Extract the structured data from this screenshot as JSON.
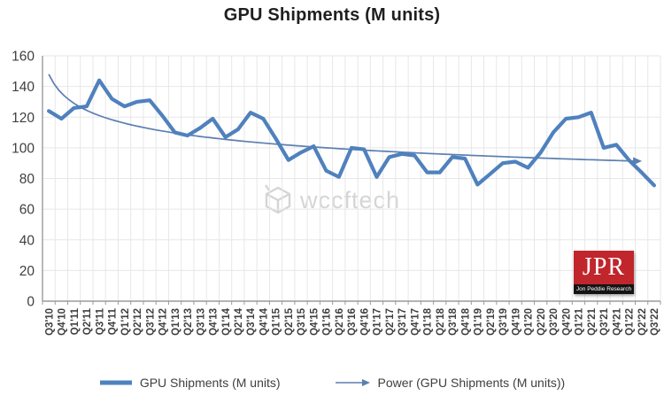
{
  "title": "GPU Shipments (M units)",
  "watermark": {
    "text": "wccftech"
  },
  "logo": {
    "text": "JPR",
    "subtext": "Jon Peddie Research"
  },
  "legend": {
    "items": [
      {
        "label": "GPU Shipments (M units)"
      },
      {
        "label": "Power (GPU Shipments (M units))"
      }
    ]
  },
  "colors": {
    "series_line": "#4F81BD",
    "trend_line": "#5B7FB0",
    "axis": "#9B9B9B",
    "grid": "#E7E7E7",
    "tick_text": "#3F3F3F",
    "watermark_gray": "#D3D3D3",
    "logo_red": "#C0262C"
  },
  "chart_data": {
    "type": "line",
    "title": "GPU Shipments (M units)",
    "xlabel": "",
    "ylabel": "",
    "ylim": [
      0,
      160
    ],
    "yticks": [
      0,
      20,
      40,
      60,
      80,
      100,
      120,
      140,
      160
    ],
    "grid": true,
    "legend_position": "bottom",
    "categories": [
      "Q3'10",
      "Q4'10",
      "Q1'11",
      "Q2'11",
      "Q3'11",
      "Q4'11",
      "Q1'12",
      "Q2'12",
      "Q3'12",
      "Q4'12",
      "Q1'13",
      "Q2'13",
      "Q3'13",
      "Q4'13",
      "Q1'14",
      "Q2'14",
      "Q3'14",
      "Q4'14",
      "Q1'15",
      "Q2'15",
      "Q3'15",
      "Q4'15",
      "Q1'16",
      "Q2'16",
      "Q3'16",
      "Q4'16",
      "Q1'17",
      "Q2'17",
      "Q3'17",
      "Q4'17",
      "Q1'18",
      "Q2'18",
      "Q3'18",
      "Q4'18",
      "Q1'19",
      "Q2'19",
      "Q3'19",
      "Q4'19",
      "Q1'20",
      "Q2'20",
      "Q3'20",
      "Q4'20",
      "Q1'21",
      "Q2'21",
      "Q3'21",
      "Q4'21",
      "Q1'22",
      "Q2'22",
      "Q3'22"
    ],
    "series": [
      {
        "name": "GPU Shipments (M units)",
        "type": "line",
        "values": [
          124,
          119,
          126,
          127,
          144,
          132,
          127,
          130,
          131,
          121,
          110,
          108,
          113,
          119,
          107,
          112,
          123,
          119,
          106,
          92,
          97,
          101,
          85,
          81,
          100,
          99,
          81,
          94,
          96,
          95,
          84,
          84,
          94,
          93,
          76,
          83,
          90,
          91,
          87,
          97,
          110,
          119,
          120,
          123,
          100,
          102,
          92,
          84,
          75.5
        ]
      },
      {
        "name": "Power (GPU Shipments (M units))",
        "type": "power_trendline",
        "formula": "y = 148 * t^-0.125",
        "a": 148,
        "b": -0.125,
        "start_value": 148,
        "end_value": 91
      }
    ]
  }
}
